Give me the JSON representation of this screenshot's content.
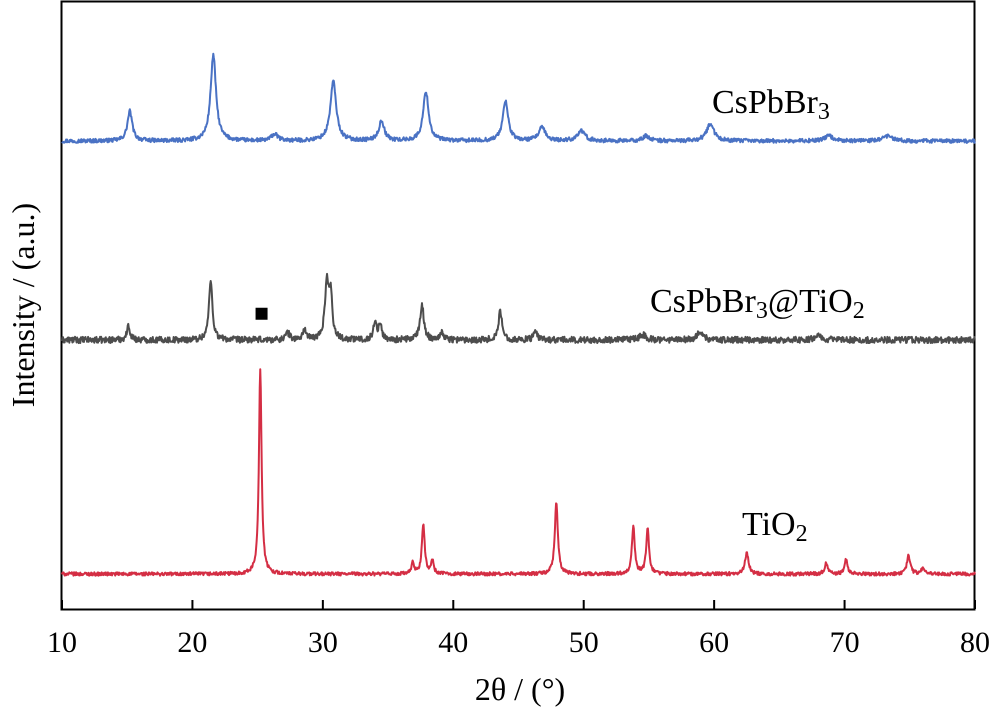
{
  "chart_data": {
    "type": "line",
    "xlabel": "2θ / (°)",
    "ylabel": "Intensity / (a.u.)",
    "xlim": [
      10,
      80
    ],
    "x_ticks": [
      "10",
      "20",
      "30",
      "40",
      "50",
      "60",
      "70",
      "80"
    ],
    "grid": false,
    "y_ticks_shown": false,
    "series": [
      {
        "name": "CsPbBr",
        "name_sub": "3",
        "color": "#4a72c4",
        "baseline": 0.94,
        "noise": 0.006,
        "peaks": [
          {
            "x": 15.2,
            "h": 0.09,
            "w": 0.22
          },
          {
            "x": 21.6,
            "h": 0.26,
            "w": 0.25
          },
          {
            "x": 26.3,
            "h": 0.02,
            "w": 0.3
          },
          {
            "x": 30.8,
            "h": 0.18,
            "w": 0.27
          },
          {
            "x": 34.5,
            "h": 0.06,
            "w": 0.25
          },
          {
            "x": 37.9,
            "h": 0.15,
            "w": 0.25
          },
          {
            "x": 44.0,
            "h": 0.12,
            "w": 0.25
          },
          {
            "x": 46.8,
            "h": 0.04,
            "w": 0.3
          },
          {
            "x": 49.8,
            "h": 0.03,
            "w": 0.35
          },
          {
            "x": 54.8,
            "h": 0.015,
            "w": 0.3
          },
          {
            "x": 59.7,
            "h": 0.05,
            "w": 0.35
          },
          {
            "x": 68.8,
            "h": 0.015,
            "w": 0.4
          },
          {
            "x": 73.3,
            "h": 0.015,
            "w": 0.4
          }
        ]
      },
      {
        "name": "CsPbBr",
        "name_sub": "3",
        "name_suffix": "@TiO",
        "name_suffix_sub": "2",
        "color": "#4d4d4d",
        "baseline": 0.45,
        "noise": 0.009,
        "peaks": [
          {
            "x": 15.1,
            "h": 0.04,
            "w": 0.15
          },
          {
            "x": 21.4,
            "h": 0.17,
            "w": 0.16
          },
          {
            "x": 27.3,
            "h": 0.02,
            "w": 0.2
          },
          {
            "x": 28.6,
            "h": 0.03,
            "w": 0.15
          },
          {
            "x": 30.3,
            "h": 0.16,
            "w": 0.17
          },
          {
            "x": 30.6,
            "h": 0.12,
            "w": 0.15
          },
          {
            "x": 34.0,
            "h": 0.05,
            "w": 0.15
          },
          {
            "x": 34.4,
            "h": 0.04,
            "w": 0.15
          },
          {
            "x": 37.6,
            "h": 0.1,
            "w": 0.17
          },
          {
            "x": 39.1,
            "h": 0.02,
            "w": 0.2
          },
          {
            "x": 43.6,
            "h": 0.08,
            "w": 0.17
          },
          {
            "x": 46.3,
            "h": 0.02,
            "w": 0.2
          },
          {
            "x": 54.5,
            "h": 0.015,
            "w": 0.3
          },
          {
            "x": 58.9,
            "h": 0.02,
            "w": 0.3
          },
          {
            "x": 68.0,
            "h": 0.015,
            "w": 0.3
          }
        ],
        "marker": {
          "x": 25.3,
          "y_above_baseline": 0.075,
          "symbol": "filled-square"
        }
      },
      {
        "name": "TiO",
        "name_sub": "2",
        "color": "#d42e44",
        "baseline": 0.02,
        "noise": 0.008,
        "peaks": [
          {
            "x": 25.2,
            "h": 0.96,
            "w": 0.12
          },
          {
            "x": 36.9,
            "h": 0.05,
            "w": 0.12
          },
          {
            "x": 37.7,
            "h": 0.23,
            "w": 0.13
          },
          {
            "x": 38.4,
            "h": 0.06,
            "w": 0.12
          },
          {
            "x": 47.9,
            "h": 0.33,
            "w": 0.14
          },
          {
            "x": 53.8,
            "h": 0.22,
            "w": 0.13
          },
          {
            "x": 54.9,
            "h": 0.21,
            "w": 0.13
          },
          {
            "x": 62.5,
            "h": 0.1,
            "w": 0.16
          },
          {
            "x": 68.6,
            "h": 0.05,
            "w": 0.15
          },
          {
            "x": 70.1,
            "h": 0.07,
            "w": 0.13
          },
          {
            "x": 74.9,
            "h": 0.09,
            "w": 0.15
          },
          {
            "x": 76.0,
            "h": 0.03,
            "w": 0.13
          }
        ]
      }
    ]
  }
}
